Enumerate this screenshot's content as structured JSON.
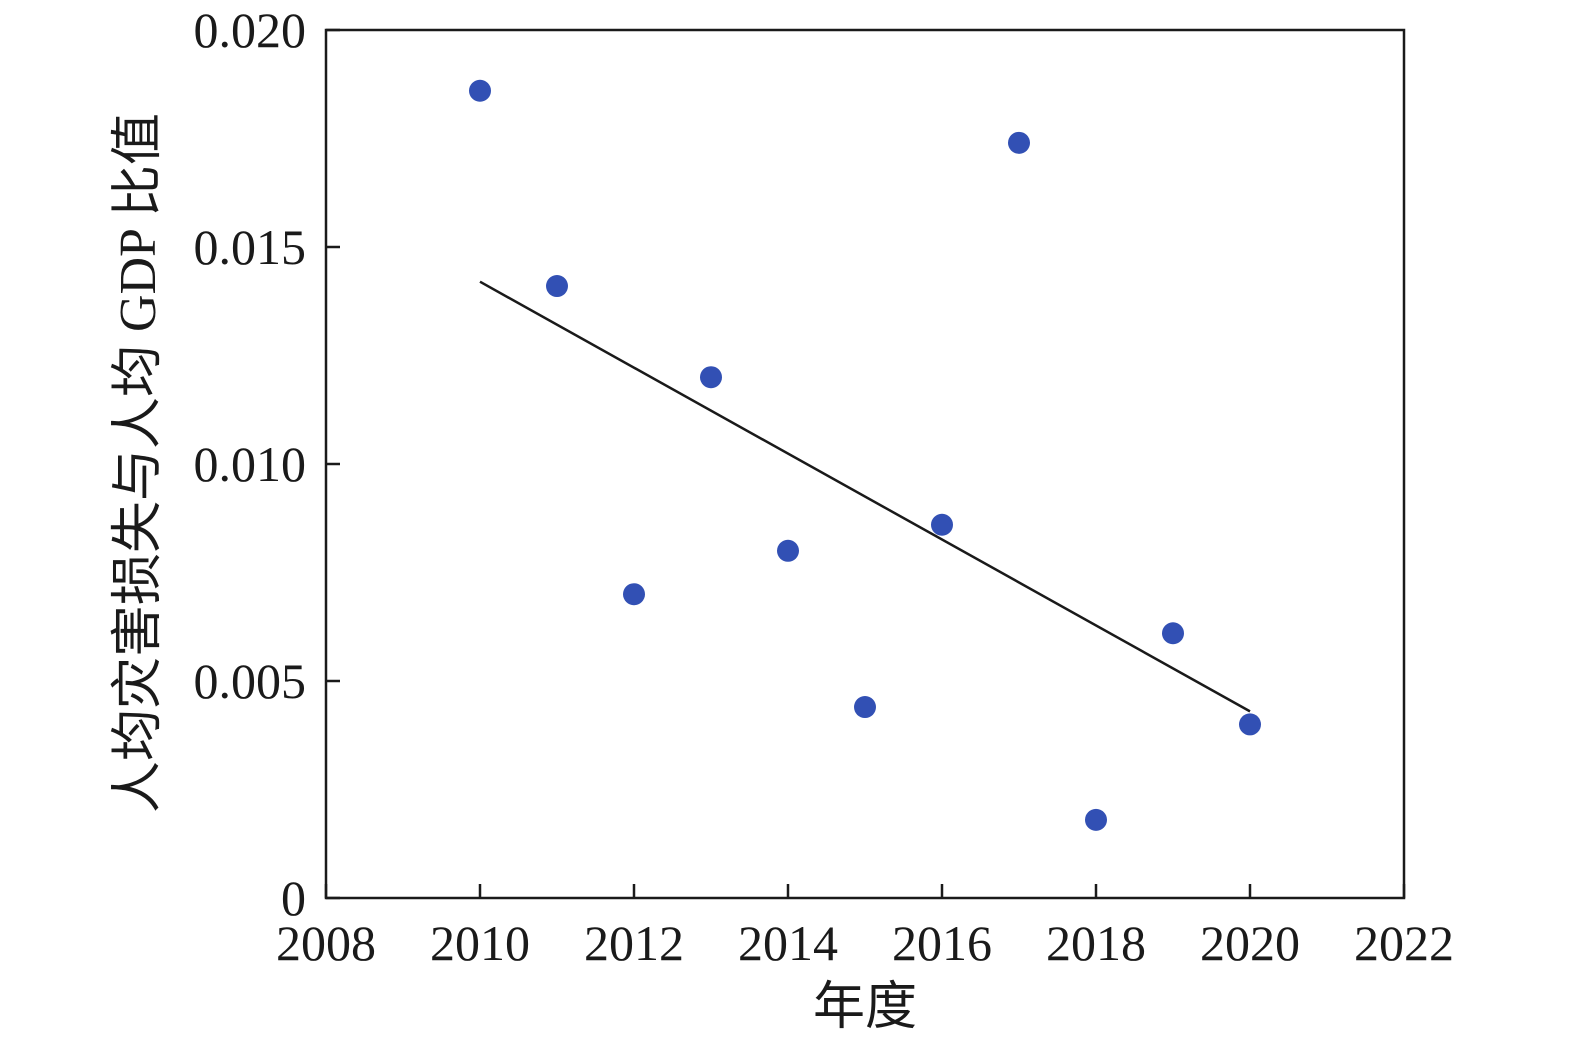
{
  "chart_data": {
    "type": "scatter",
    "title": "",
    "xlabel": "年度",
    "ylabel": "人均灾害损失与人均 GDP 比值",
    "xlim": [
      2008,
      2022
    ],
    "ylim": [
      0,
      0.02
    ],
    "x_ticks": [
      2008,
      2010,
      2012,
      2014,
      2016,
      2018,
      2020,
      2022
    ],
    "x_tick_labels": [
      "2008",
      "2010",
      "2012",
      "2014",
      "2016",
      "2018",
      "2020",
      "2022"
    ],
    "y_ticks": [
      0,
      0.005,
      0.01,
      0.015,
      0.02
    ],
    "y_tick_labels": [
      "0",
      "0.005",
      "0.010",
      "0.015",
      "0.020"
    ],
    "grid": false,
    "legend": "none",
    "point_color": "#3250b4",
    "line_color": "#1a1a1a",
    "series": [
      {
        "kind": "points",
        "x": [
          2010,
          2011,
          2012,
          2013,
          2014,
          2015,
          2016,
          2017,
          2018,
          2019,
          2020
        ],
        "y": [
          0.0186,
          0.0141,
          0.007,
          0.012,
          0.008,
          0.0044,
          0.0086,
          0.0174,
          0.0018,
          0.0061,
          0.004
        ]
      },
      {
        "kind": "trendline",
        "x": [
          2010,
          2020
        ],
        "y": [
          0.0142,
          0.0043
        ]
      }
    ]
  }
}
